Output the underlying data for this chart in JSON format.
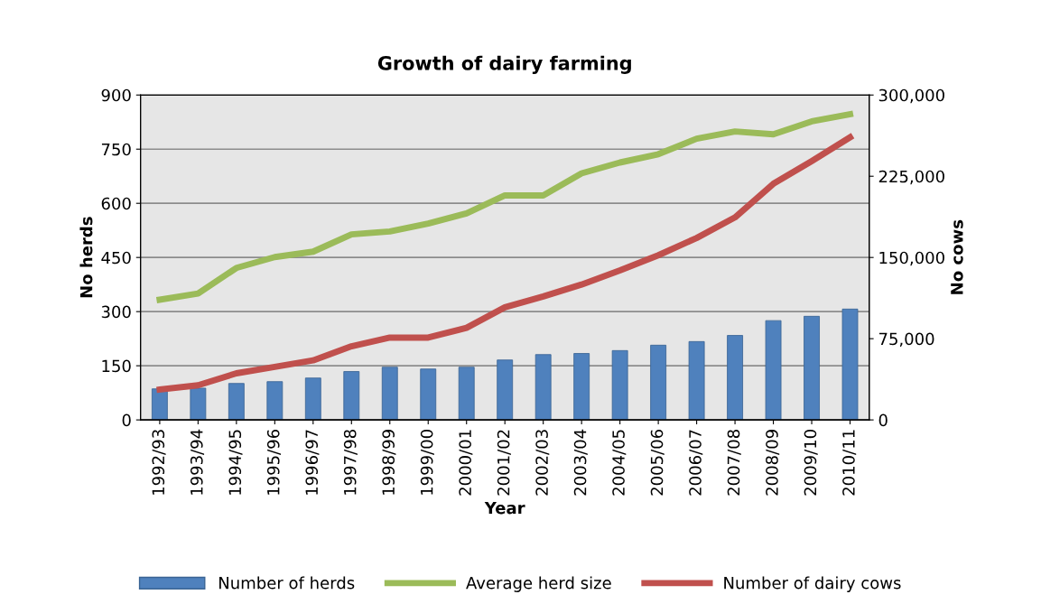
{
  "chart_data": {
    "type": "bar",
    "title": "Growth of dairy farming",
    "xlabel": "Year",
    "ylabel": "No herds",
    "y2label": "No cows",
    "categories": [
      "1992/93",
      "1993/94",
      "1994/95",
      "1995/96",
      "1996/97",
      "1997/98",
      "1998/99",
      "1999/00",
      "2000/01",
      "2001/02",
      "2002/03",
      "2003/04",
      "2004/05",
      "2005/06",
      "2006/07",
      "2007/08",
      "2008/09",
      "2009/10",
      "2010/11"
    ],
    "series": [
      {
        "name": "Number of herds",
        "color": "#4f81bd",
        "values": [
          86,
          88,
          101,
          106,
          116,
          134,
          146,
          141,
          146,
          166,
          181,
          184,
          192,
          207,
          217,
          234,
          275,
          287,
          307
        ]
      },
      {
        "name": "Average herd size",
        "type": "line",
        "color": "#9bbb59",
        "values": [
          333,
          350,
          421,
          451,
          466,
          514,
          522,
          544,
          572,
          622,
          622,
          683,
          713,
          736,
          779,
          799,
          791,
          827,
          847
        ]
      },
      {
        "name": "Number of dairy cows",
        "type": "line",
        "axis": "y2",
        "color": "#c0504d",
        "values": [
          28000,
          32000,
          43000,
          49000,
          55000,
          68000,
          76000,
          76000,
          85000,
          104000,
          114000,
          125000,
          138000,
          152000,
          168000,
          187000,
          218000,
          239000,
          261000
        ]
      }
    ],
    "ylim": [
      0,
      900
    ],
    "yticks": [
      0,
      150,
      300,
      450,
      600,
      750,
      900
    ],
    "y2lim": [
      0,
      300000
    ],
    "y2ticks": [
      0,
      {
        "value": 75000,
        "label": "75,000"
      },
      {
        "value": 150000,
        "label": "150,000"
      },
      {
        "value": 225000,
        "label": "225,000"
      },
      {
        "value": 300000,
        "label": "300,000"
      }
    ],
    "grid": "y",
    "legend": "bottom",
    "marker": "none",
    "line_style": "solid"
  }
}
